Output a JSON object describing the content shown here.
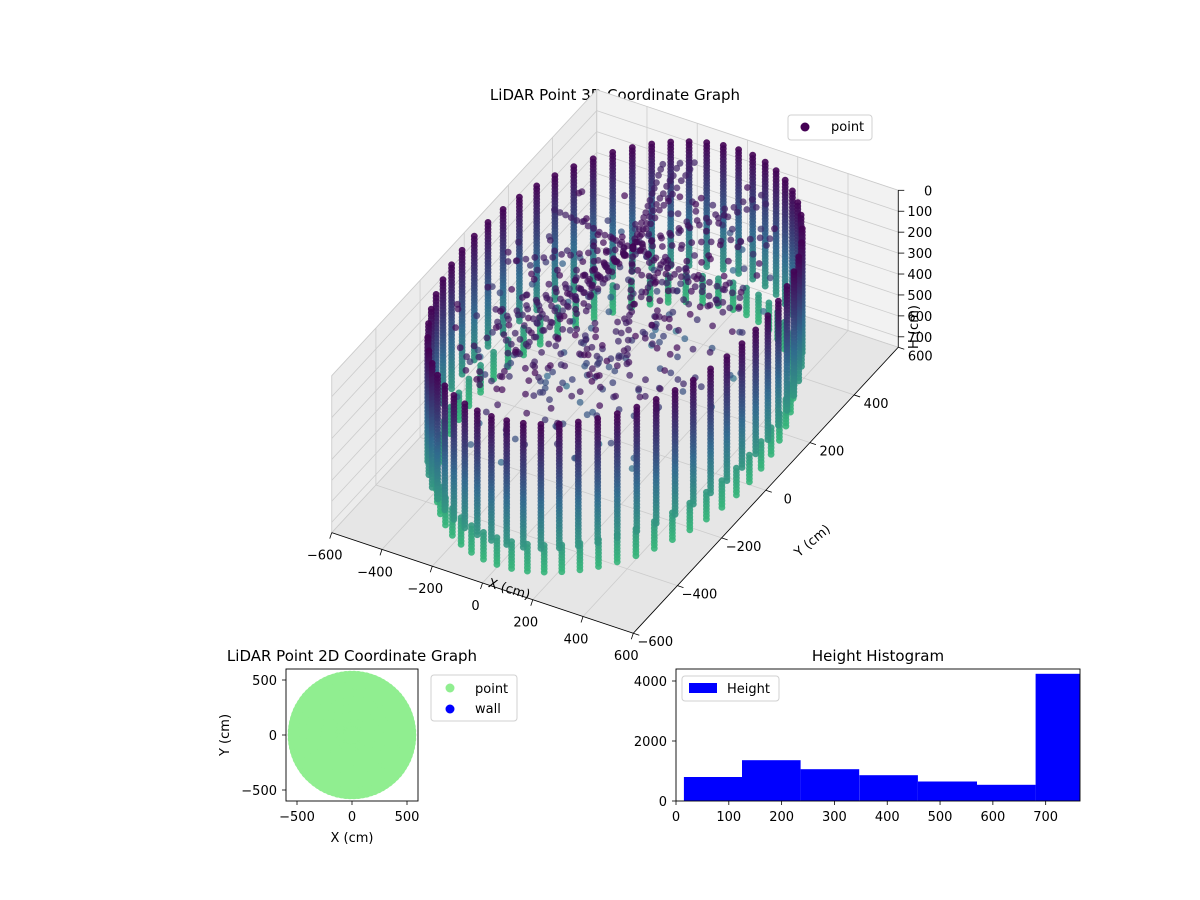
{
  "colors": {
    "point_3d_high": "#440154",
    "point_3d_mid": "#31688e",
    "point_3d_low": "#35b779",
    "point_2d": "#90ee90",
    "wall_2d": "#0000ff",
    "histogram": "#0000ff",
    "pane": "#f2f2f2",
    "grid": "#cccccc"
  },
  "chart_data": [
    {
      "type": "scatter",
      "projection": "3d",
      "title": "LiDAR Point 3D Coordinate Graph",
      "xlabel": "X (cm)",
      "ylabel": "Y (cm)",
      "zlabel": "H (cm)",
      "xlim": [
        -600,
        600
      ],
      "ylim": [
        -600,
        600
      ],
      "zlim": [
        0,
        750
      ],
      "z_inverted": true,
      "xticks": [
        "−600",
        "−400",
        "−200",
        "0",
        "200",
        "400",
        "600"
      ],
      "yticks": [
        "−600",
        "−400",
        "−200",
        "0",
        "200",
        "400",
        "600"
      ],
      "zticks": [
        "0",
        "100",
        "200",
        "300",
        "400",
        "500",
        "600",
        "700"
      ],
      "legend": [
        {
          "label": "point",
          "color": "#440154",
          "marker": "circle"
        }
      ],
      "legend_position": "upper-right",
      "colormap": "viridis",
      "grid": true,
      "description_data": {
        "wall_radius": 560,
        "wall_columns": 60,
        "height_range": [
          0,
          750
        ]
      }
    },
    {
      "type": "scatter",
      "title": "LiDAR Point 2D Coordinate Graph",
      "xlabel": "X (cm)",
      "ylabel": "Y (cm)",
      "xlim": [
        -600,
        600
      ],
      "ylim": [
        -600,
        600
      ],
      "xticks": [
        "−500",
        "0",
        "500"
      ],
      "yticks": [
        "−500",
        "0",
        "500"
      ],
      "legend": [
        {
          "label": "point",
          "color": "#90ee90",
          "marker": "circle"
        },
        {
          "label": "wall",
          "color": "#0000ff",
          "marker": "circle"
        }
      ],
      "legend_position": "outside-right",
      "point_region_radius": 580
    },
    {
      "type": "bar",
      "subtype": "histogram",
      "title": "Height Histogram",
      "xlabel": "",
      "ylabel": "",
      "xlim": [
        0,
        765
      ],
      "ylim": [
        0,
        4400
      ],
      "xticks": [
        "0",
        "100",
        "200",
        "300",
        "400",
        "500",
        "600",
        "700"
      ],
      "yticks": [
        "0",
        "2000",
        "4000"
      ],
      "legend": [
        {
          "label": "Height",
          "color": "#0000ff"
        }
      ],
      "legend_position": "upper-left",
      "bins": [
        {
          "from": 15,
          "to": 125,
          "count": 800
        },
        {
          "from": 125,
          "to": 236,
          "count": 1360
        },
        {
          "from": 236,
          "to": 347,
          "count": 1060
        },
        {
          "from": 347,
          "to": 458,
          "count": 860
        },
        {
          "from": 458,
          "to": 570,
          "count": 650
        },
        {
          "from": 570,
          "to": 681,
          "count": 540
        },
        {
          "from": 681,
          "to": 765,
          "count": 4240
        }
      ]
    }
  ]
}
